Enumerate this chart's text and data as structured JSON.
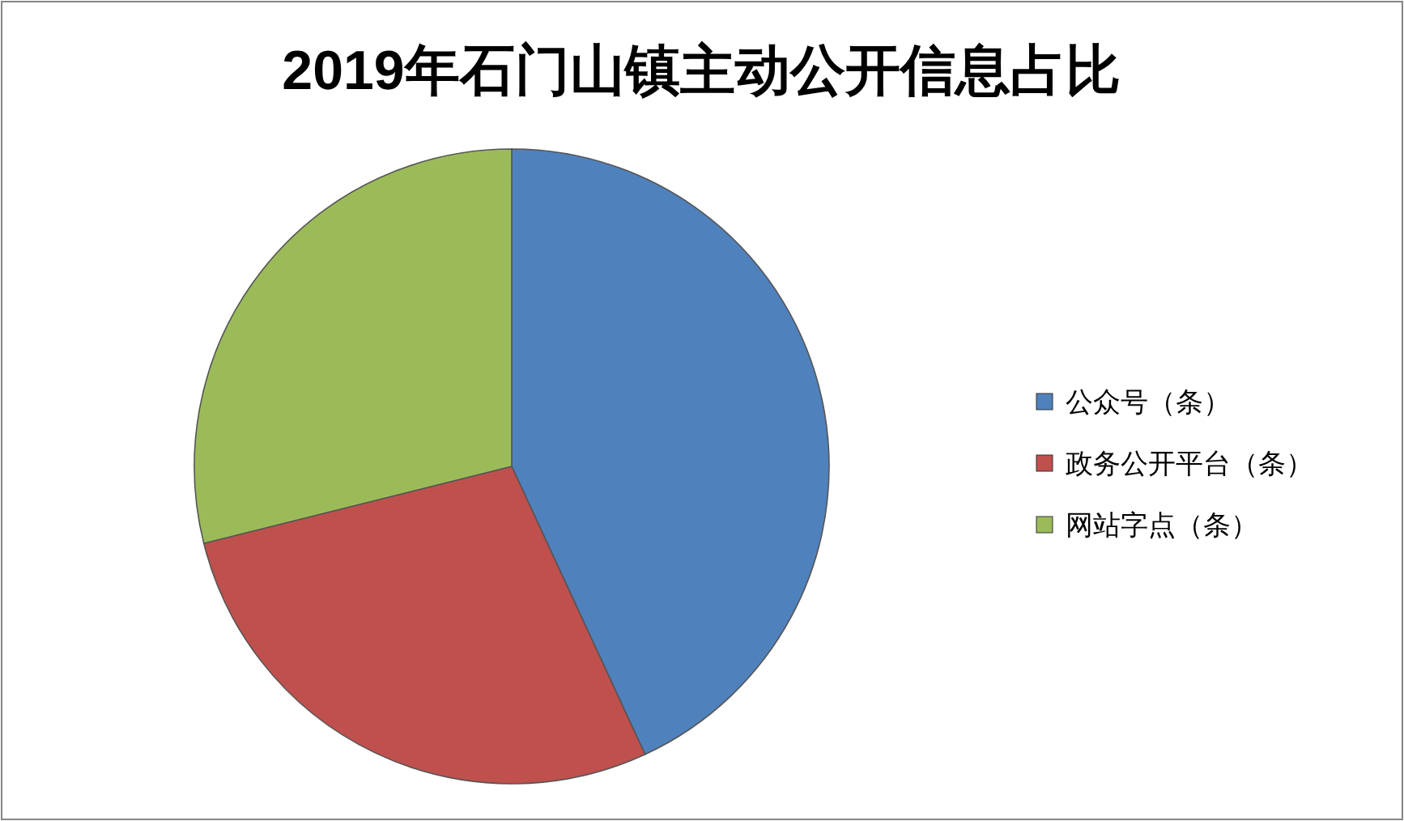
{
  "chart_data": {
    "type": "pie",
    "title": "2019年石门山镇主动公开信息占比",
    "categories": [
      "公众号（条）",
      "政务公开平台（条）",
      "网站字点（条）"
    ],
    "values": [
      43.1,
      28.0,
      28.9
    ],
    "colors": [
      "#4f81bd",
      "#c0504d",
      "#9bbb59"
    ],
    "legend": "right"
  }
}
